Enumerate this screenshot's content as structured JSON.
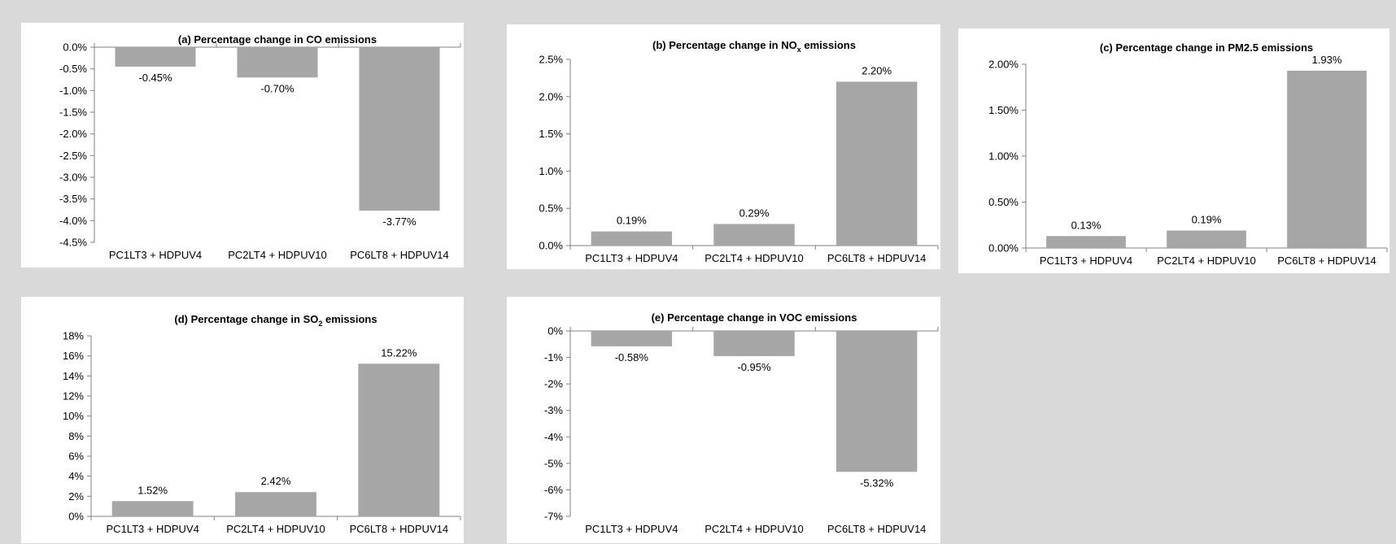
{
  "chart_data": [
    {
      "type": "bar",
      "title": "(a) Percentage change in CO emissions",
      "categories": [
        "PC1LT3 + HDPUV4",
        "PC2LT4 + HDPUV10",
        "PC6LT8 + HDPUV14"
      ],
      "values": [
        -0.45,
        -0.7,
        -3.77
      ],
      "data_labels": [
        "-0.45%",
        "-0.70%",
        "-3.77%"
      ],
      "ylim": [
        -4.5,
        0
      ],
      "yticks": [
        0,
        -0.5,
        -1.0,
        -1.5,
        -2.0,
        -2.5,
        -3.0,
        -3.5,
        -4.0,
        -4.5
      ],
      "ytick_labels": [
        "0.0%",
        "-0.5%",
        "-1.0%",
        "-1.5%",
        "-2.0%",
        "-2.5%",
        "-3.0%",
        "-3.5%",
        "-4.0%",
        "-4.5%"
      ],
      "bar_color": "#a6a6a6",
      "grid": false,
      "legend": "none"
    },
    {
      "type": "bar",
      "title": "(b) Percentage change in NO",
      "title_subscript": "x",
      "title_suffix": " emissions",
      "categories": [
        "PC1LT3 + HDPUV4",
        "PC2LT4 + HDPUV10",
        "PC6LT8 + HDPUV14"
      ],
      "values": [
        0.19,
        0.29,
        2.2
      ],
      "data_labels": [
        "0.19%",
        "0.29%",
        "2.20%"
      ],
      "ylim": [
        0,
        2.5
      ],
      "yticks": [
        0,
        0.5,
        1.0,
        1.5,
        2.0,
        2.5
      ],
      "ytick_labels": [
        "0.0%",
        "0.5%",
        "1.0%",
        "1.5%",
        "2.0%",
        "2.5%"
      ],
      "bar_color": "#a6a6a6",
      "grid": false,
      "legend": "none"
    },
    {
      "type": "bar",
      "title": "(c) Percentage change in PM2.5 emissions",
      "categories": [
        "PC1LT3 + HDPUV4",
        "PC2LT4 + HDPUV10",
        "PC6LT8 + HDPUV14"
      ],
      "values": [
        0.13,
        0.19,
        1.93
      ],
      "data_labels": [
        "0.13%",
        "0.19%",
        "1.93%"
      ],
      "ylim": [
        0,
        2.0
      ],
      "yticks": [
        0,
        0.5,
        1.0,
        1.5,
        2.0
      ],
      "ytick_labels": [
        "0.00%",
        "0.50%",
        "1.00%",
        "1.50%",
        "2.00%"
      ],
      "bar_color": "#a6a6a6",
      "grid": false,
      "legend": "none"
    },
    {
      "type": "bar",
      "title": "(d) Percentage change in SO",
      "title_subscript": "2",
      "title_suffix": " emissions",
      "categories": [
        "PC1LT3 + HDPUV4",
        "PC2LT4 + HDPUV10",
        "PC6LT8 + HDPUV14"
      ],
      "values": [
        1.52,
        2.42,
        15.22
      ],
      "data_labels": [
        "1.52%",
        "2.42%",
        "15.22%"
      ],
      "ylim": [
        0,
        18
      ],
      "yticks": [
        0,
        2,
        4,
        6,
        8,
        10,
        12,
        14,
        16,
        18
      ],
      "ytick_labels": [
        "0%",
        "2%",
        "4%",
        "6%",
        "8%",
        "10%",
        "12%",
        "14%",
        "16%",
        "18%"
      ],
      "bar_color": "#a6a6a6",
      "grid": false,
      "legend": "none"
    },
    {
      "type": "bar",
      "title": "(e) Percentage change in VOC emissions",
      "categories": [
        "PC1LT3 + HDPUV4",
        "PC2LT4 + HDPUV10",
        "PC6LT8 + HDPUV14"
      ],
      "values": [
        -0.58,
        -0.95,
        -5.32
      ],
      "data_labels": [
        "-0.58%",
        "-0.95%",
        "-5.32%"
      ],
      "ylim": [
        -7,
        0
      ],
      "yticks": [
        0,
        -1,
        -2,
        -3,
        -4,
        -5,
        -6,
        -7
      ],
      "ytick_labels": [
        "0%",
        "-1%",
        "-2%",
        "-3%",
        "-4%",
        "-5%",
        "-6%",
        "-7%"
      ],
      "bar_color": "#a6a6a6",
      "grid": false,
      "legend": "none"
    }
  ]
}
